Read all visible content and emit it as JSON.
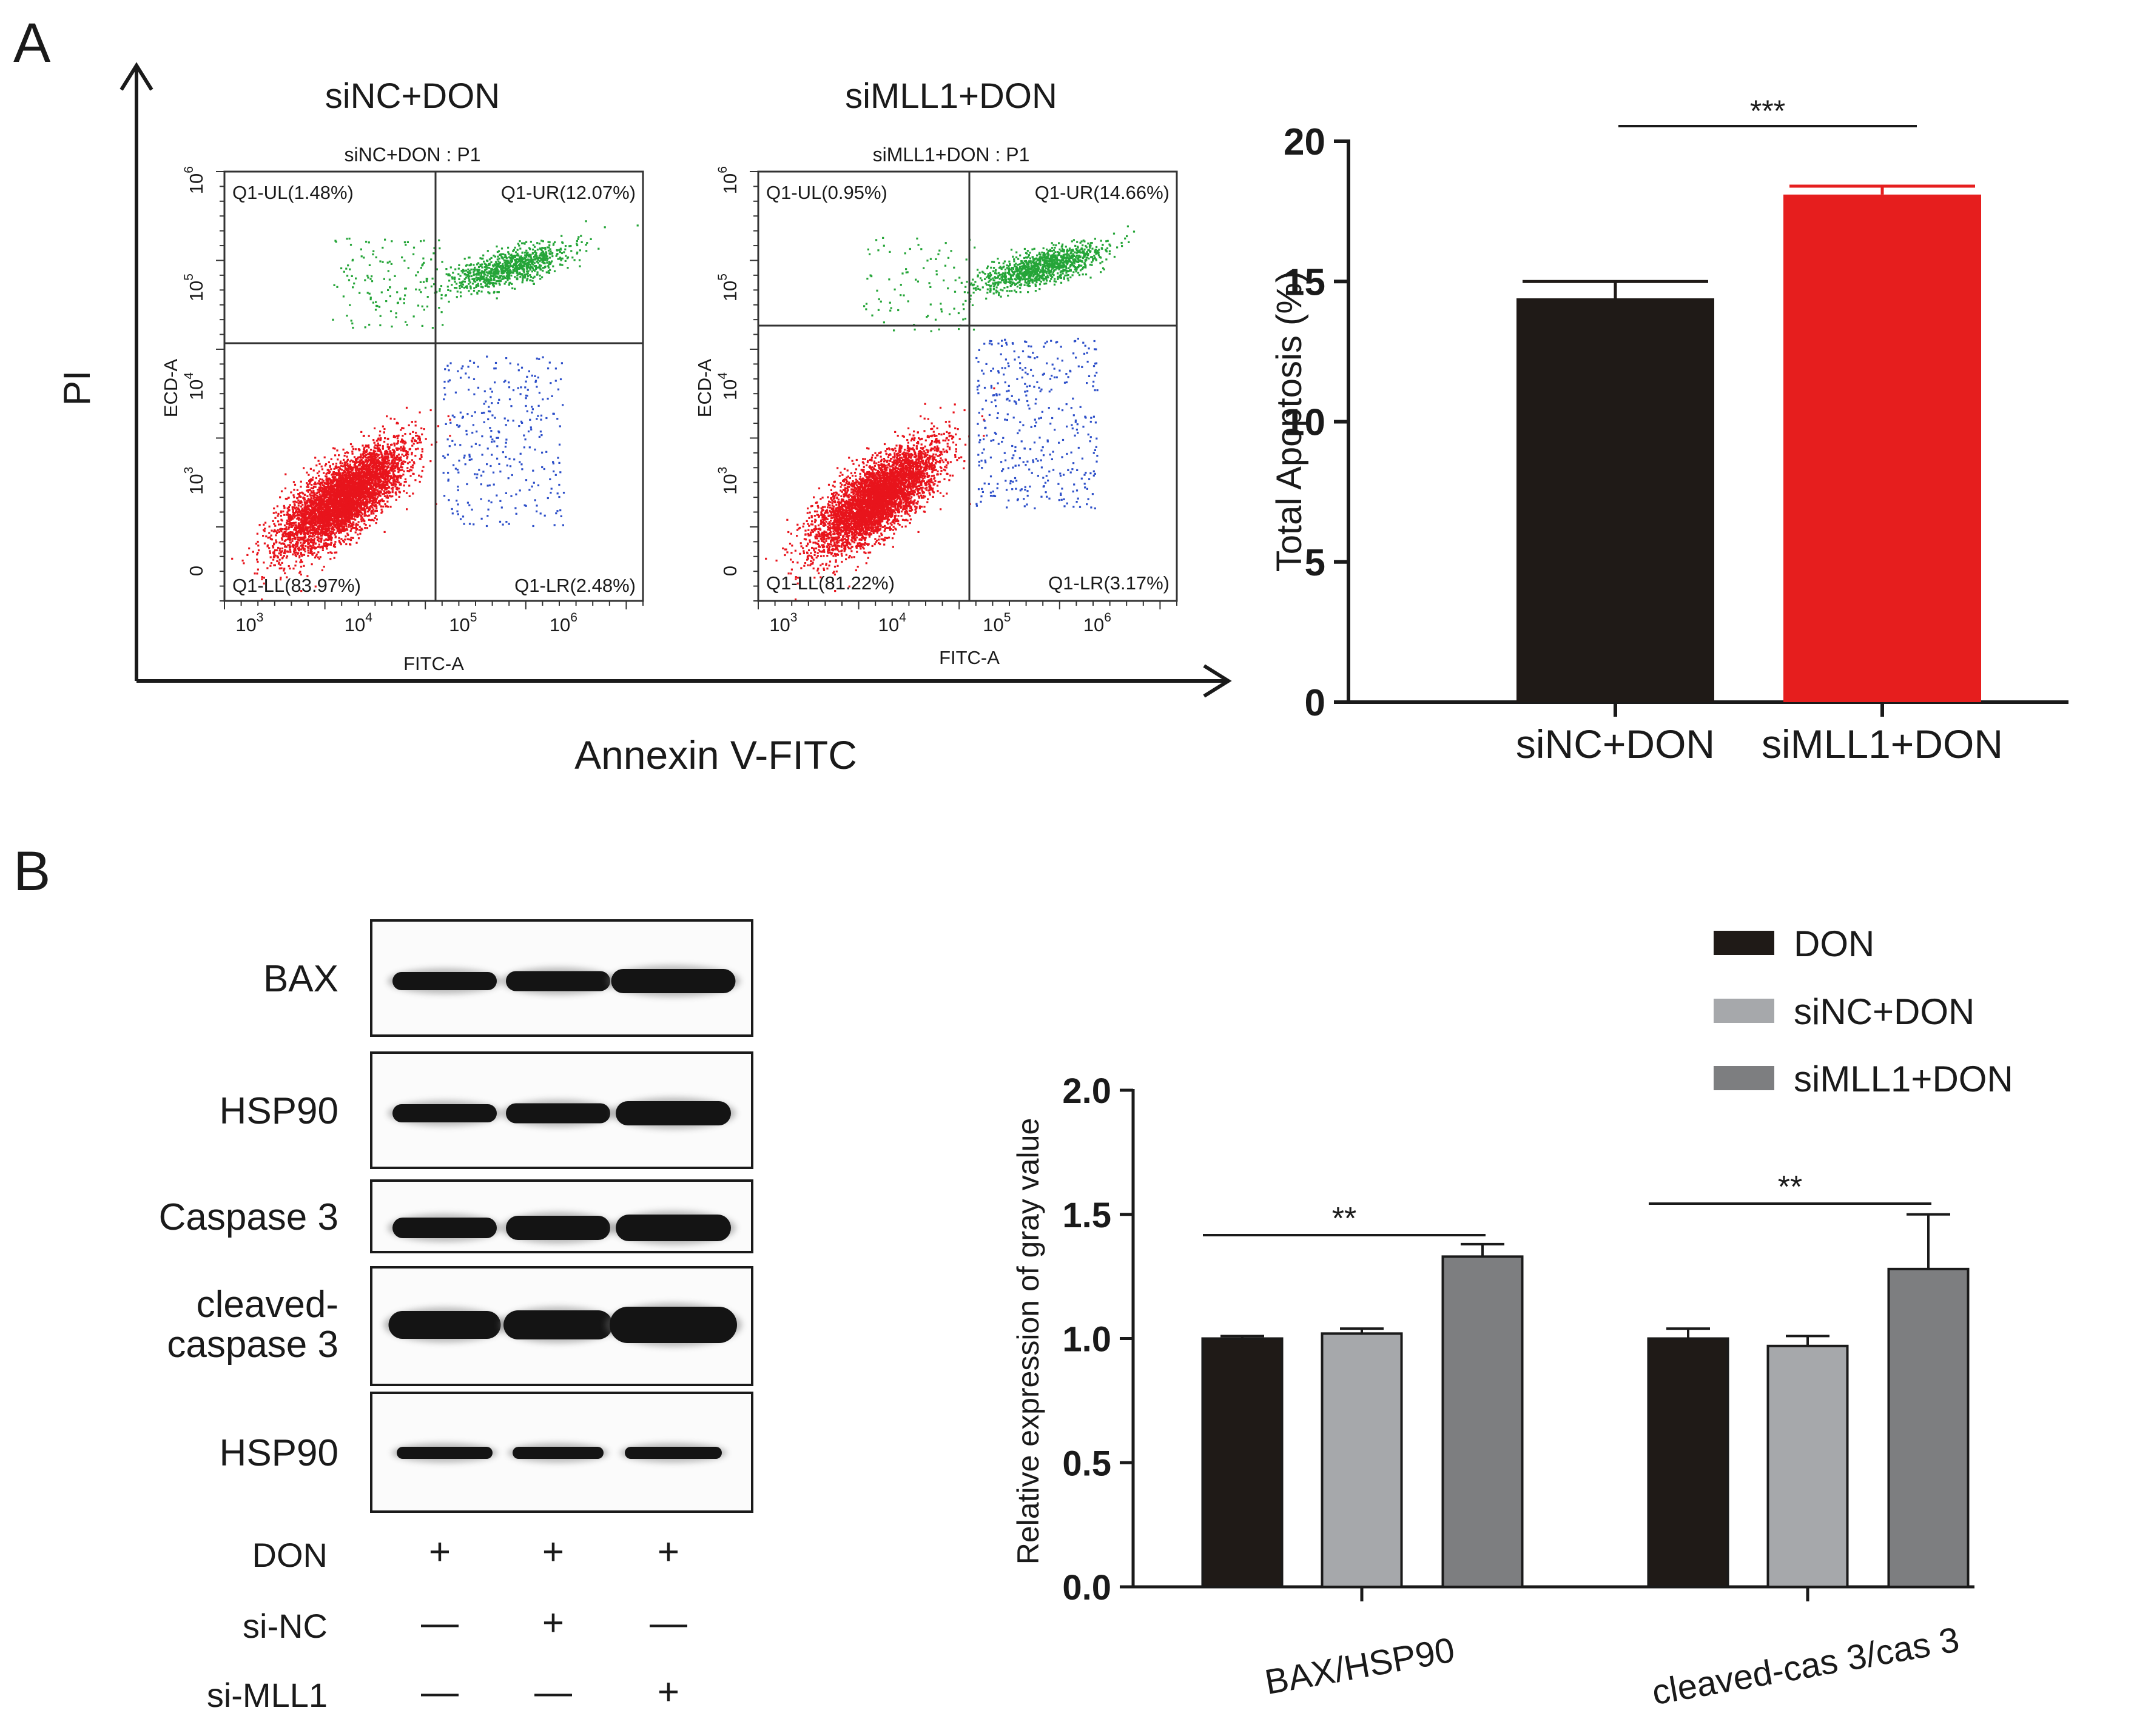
{
  "panels": {
    "a_letter": "A",
    "b_letter": "B"
  },
  "flow": {
    "y_axis_label": "PI",
    "x_axis_label": "Annexin V-FITC",
    "plots": [
      {
        "heading": "siNC+DON",
        "title": "siNC+DON : P1",
        "y_channel": "ECD-A",
        "x_channel": "FITC-A",
        "quadrants": {
          "UL": "Q1-UL(1.48%)",
          "UR": "Q1-UR(12.07%)",
          "LL": "Q1-LL(83.97%)",
          "LR": "Q1-LR(2.48%)"
        },
        "percent_UL": 1.48,
        "percent_UR": 12.07,
        "percent_LL": 83.97,
        "percent_LR": 2.48
      },
      {
        "heading": "siMLL1+DON",
        "title": "siMLL1+DON : P1",
        "y_channel": "ECD-A",
        "x_channel": "FITC-A",
        "quadrants": {
          "UL": "Q1-UL(0.95%)",
          "UR": "Q1-UR(14.66%)",
          "LL": "Q1-LL(81.22%)",
          "LR": "Q1-LR(3.17%)"
        },
        "percent_UL": 0.95,
        "percent_UR": 14.66,
        "percent_LL": 81.22,
        "percent_LR": 3.17
      }
    ],
    "x_ticks": [
      {
        "base": "10",
        "exp": "3"
      },
      {
        "base": "10",
        "exp": "4"
      },
      {
        "base": "10",
        "exp": "5"
      },
      {
        "base": "10",
        "exp": "6"
      }
    ],
    "y_ticks": [
      {
        "base": "0",
        "exp": ""
      },
      {
        "base": "10",
        "exp": "3"
      },
      {
        "base": "10",
        "exp": "4"
      },
      {
        "base": "10",
        "exp": "5"
      },
      {
        "base": "10",
        "exp": "6"
      }
    ],
    "colors": {
      "live": "#e8141c",
      "late": "#25a538",
      "early": "#2d4fc9"
    }
  },
  "chart_data": [
    {
      "type": "bar",
      "title": "",
      "xlabel": "",
      "ylabel": "Total Apoptosis  (%)",
      "categories": [
        "siNC+DON",
        "siMLL1+DON"
      ],
      "values": [
        14.4,
        18.1
      ],
      "errors": [
        0.6,
        0.3
      ],
      "colors": [
        "#1f1a17",
        "#e61e1e"
      ],
      "ylim": [
        0,
        20
      ],
      "yticks": [
        "0",
        "5",
        "10",
        "15",
        "20"
      ],
      "significance": {
        "label": "***",
        "from": 0,
        "to": 1
      }
    },
    {
      "type": "bar",
      "title": "",
      "xlabel": "",
      "ylabel": "Relative expression of gray value",
      "categories": [
        "BAX/HSP90",
        "cleaved-cas 3/cas 3"
      ],
      "series": [
        {
          "name": "DON",
          "values": [
            1.0,
            1.0
          ],
          "errors": [
            0.01,
            0.04
          ],
          "color": "#1f1a17"
        },
        {
          "name": "siNC+DON",
          "values": [
            1.02,
            0.97
          ],
          "errors": [
            0.02,
            0.04
          ],
          "color": "#a6a8ab"
        },
        {
          "name": "siMLL1+DON",
          "values": [
            1.33,
            1.28
          ],
          "errors": [
            0.05,
            0.22
          ],
          "color": "#7d7e80"
        }
      ],
      "ylim": [
        0,
        2.0
      ],
      "yticks": [
        "0.0",
        "0.5",
        "1.0",
        "1.5",
        "2.0"
      ],
      "significance": [
        {
          "label": "**",
          "group": 0,
          "from": 0,
          "to": 2
        },
        {
          "label": "**",
          "group": 1,
          "from": 0,
          "to": 2
        }
      ]
    }
  ],
  "blot": {
    "bands": [
      {
        "label": "BAX",
        "label_line2": ""
      },
      {
        "label": "HSP90",
        "label_line2": ""
      },
      {
        "label": "Caspase 3",
        "label_line2": ""
      },
      {
        "label": "cleaved-",
        "label_line2": "caspase 3"
      },
      {
        "label": "HSP90",
        "label_line2": ""
      }
    ],
    "treatments": [
      {
        "label": "DON",
        "marks": [
          "+",
          "+",
          "+"
        ]
      },
      {
        "label": "si-NC",
        "marks": [
          "—",
          "+",
          "—"
        ]
      },
      {
        "label": "si-MLL1",
        "marks": [
          "—",
          "—",
          "+"
        ]
      }
    ]
  }
}
